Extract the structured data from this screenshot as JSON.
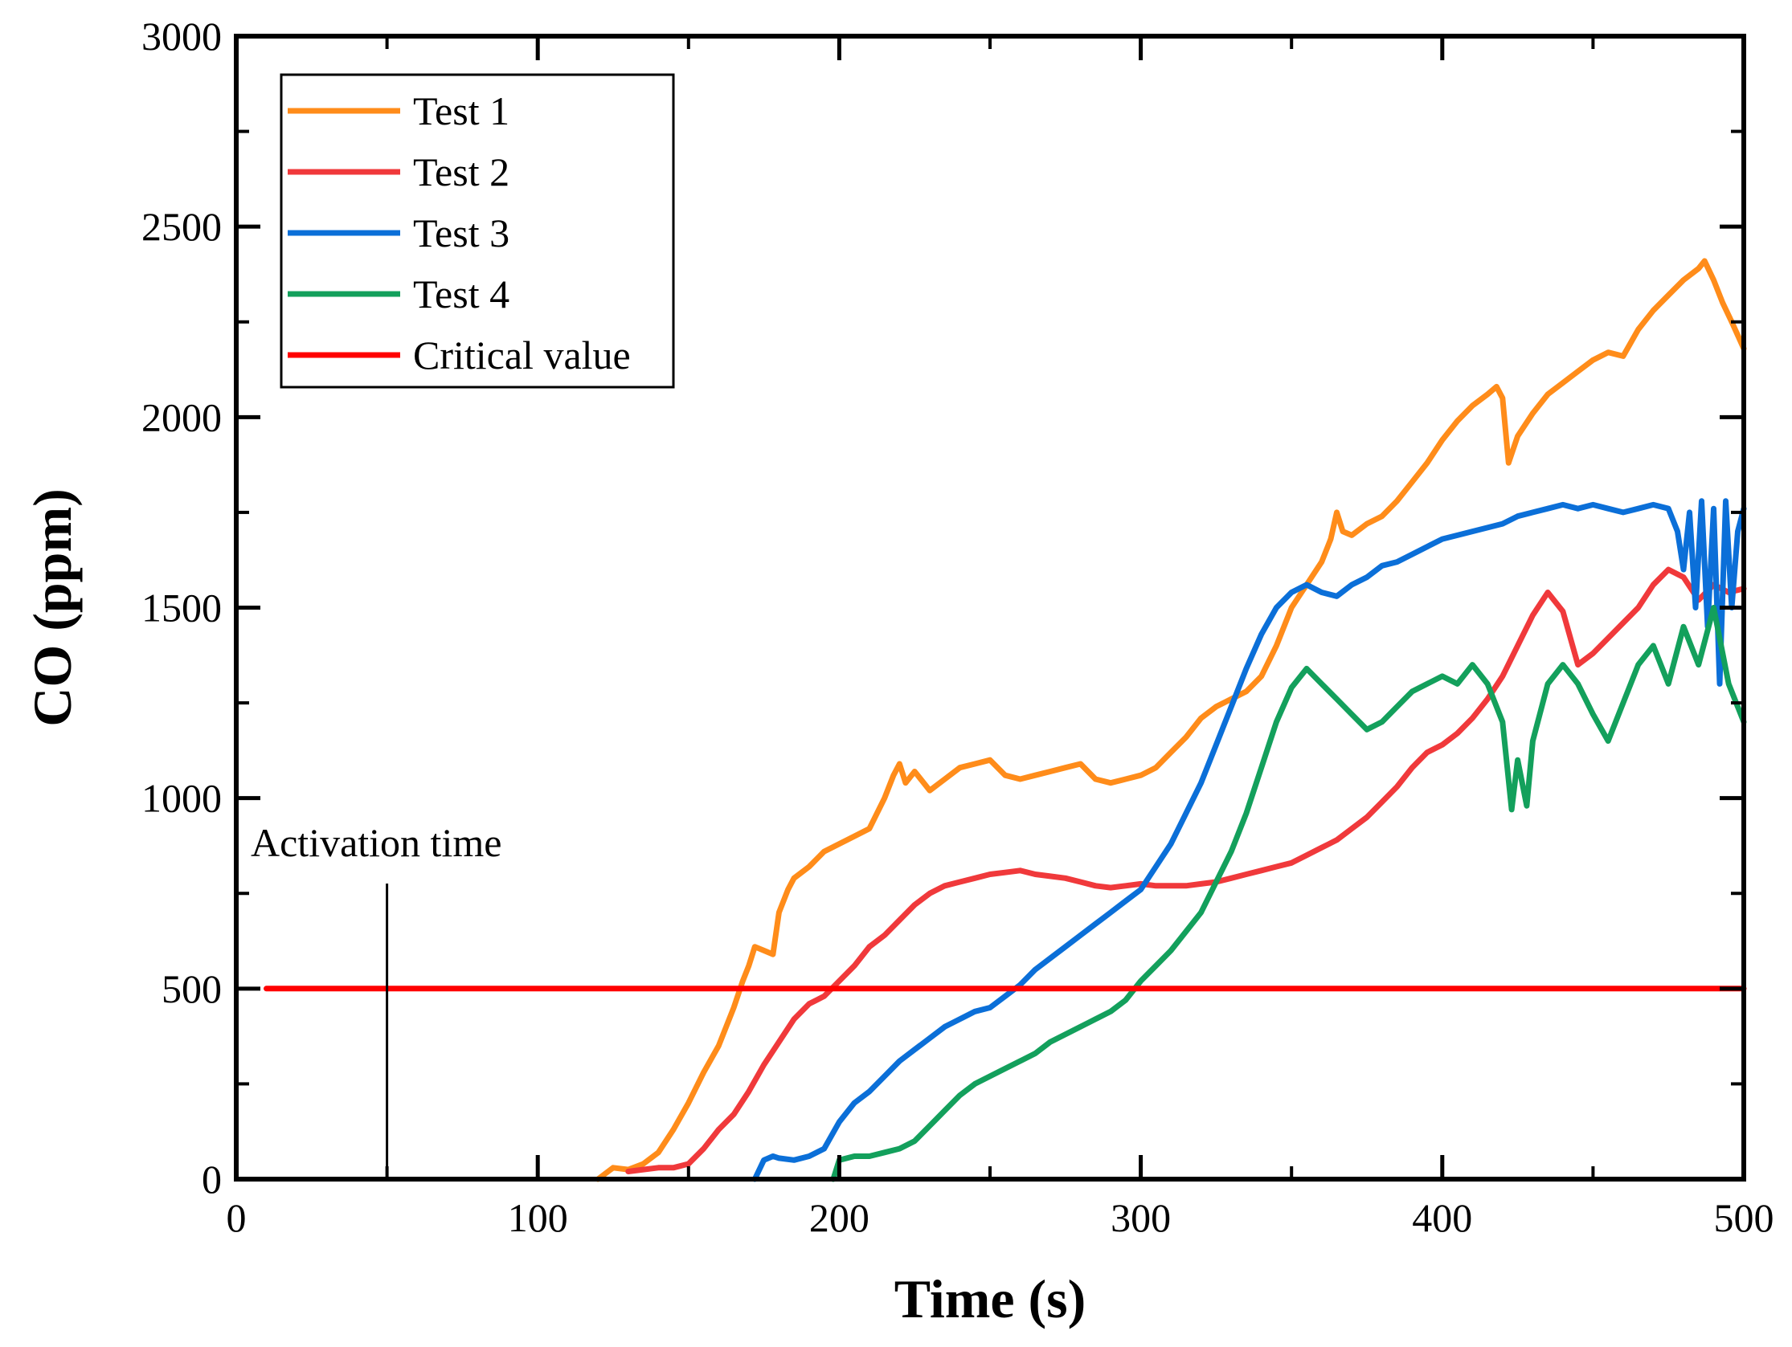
{
  "chart_data": {
    "type": "line",
    "title": "",
    "xlabel": "Time (s)",
    "ylabel": "CO (ppm)",
    "xlim": [
      0,
      500
    ],
    "ylim": [
      0,
      3000
    ],
    "xticks": [
      0,
      100,
      200,
      300,
      400,
      500
    ],
    "yticks": [
      0,
      500,
      1000,
      1500,
      2000,
      2500,
      3000
    ],
    "legend_position": "top-left",
    "grid": false,
    "annotation": {
      "text": "Activation time",
      "x": 50
    },
    "series": [
      {
        "name": "Test 1",
        "color": "#ff8c1a",
        "x": [
          120,
          125,
          130,
          135,
          140,
          145,
          150,
          155,
          160,
          165,
          168,
          170,
          172,
          175,
          178,
          180,
          183,
          185,
          190,
          195,
          200,
          205,
          210,
          215,
          218,
          220,
          222,
          225,
          230,
          235,
          240,
          245,
          250,
          255,
          260,
          265,
          270,
          275,
          280,
          285,
          290,
          295,
          300,
          305,
          310,
          315,
          320,
          325,
          330,
          335,
          340,
          345,
          350,
          355,
          360,
          363,
          365,
          367,
          370,
          375,
          380,
          385,
          390,
          395,
          400,
          405,
          410,
          415,
          418,
          420,
          422,
          425,
          430,
          435,
          440,
          445,
          450,
          455,
          460,
          465,
          470,
          475,
          480,
          485,
          487,
          490,
          493,
          496,
          500
        ],
        "y": [
          0,
          30,
          25,
          40,
          70,
          130,
          200,
          280,
          350,
          450,
          520,
          560,
          610,
          600,
          590,
          700,
          760,
          790,
          820,
          860,
          880,
          900,
          920,
          1000,
          1060,
          1090,
          1040,
          1070,
          1020,
          1050,
          1080,
          1090,
          1100,
          1060,
          1050,
          1060,
          1070,
          1080,
          1090,
          1050,
          1040,
          1050,
          1060,
          1080,
          1120,
          1160,
          1210,
          1240,
          1260,
          1280,
          1320,
          1400,
          1500,
          1560,
          1620,
          1680,
          1750,
          1700,
          1690,
          1720,
          1740,
          1780,
          1830,
          1880,
          1940,
          1990,
          2030,
          2060,
          2080,
          2050,
          1880,
          1950,
          2010,
          2060,
          2090,
          2120,
          2150,
          2170,
          2160,
          2230,
          2280,
          2320,
          2360,
          2390,
          2410,
          2360,
          2300,
          2250,
          2180
        ]
      },
      {
        "name": "Test 2",
        "color": "#f0393b",
        "x": [
          130,
          135,
          140,
          145,
          150,
          155,
          160,
          165,
          170,
          175,
          180,
          185,
          190,
          195,
          200,
          205,
          210,
          215,
          220,
          225,
          230,
          235,
          240,
          245,
          250,
          255,
          260,
          265,
          270,
          275,
          280,
          285,
          290,
          295,
          300,
          305,
          310,
          315,
          320,
          325,
          330,
          335,
          340,
          345,
          350,
          355,
          360,
          365,
          370,
          375,
          380,
          385,
          390,
          395,
          400,
          405,
          410,
          415,
          420,
          425,
          430,
          435,
          440,
          445,
          450,
          455,
          460,
          465,
          470,
          475,
          480,
          485,
          490,
          495,
          500
        ],
        "y": [
          20,
          25,
          30,
          30,
          40,
          80,
          130,
          170,
          230,
          300,
          360,
          420,
          460,
          480,
          520,
          560,
          610,
          640,
          680,
          720,
          750,
          770,
          780,
          790,
          800,
          805,
          810,
          800,
          795,
          790,
          780,
          770,
          765,
          770,
          775,
          770,
          770,
          770,
          775,
          780,
          790,
          800,
          810,
          820,
          830,
          850,
          870,
          890,
          920,
          950,
          990,
          1030,
          1080,
          1120,
          1140,
          1170,
          1210,
          1260,
          1320,
          1400,
          1480,
          1540,
          1490,
          1350,
          1380,
          1420,
          1460,
          1500,
          1560,
          1600,
          1580,
          1520,
          1560,
          1540,
          1550
        ]
      },
      {
        "name": "Test 3",
        "color": "#0b6fd8",
        "x": [
          172,
          175,
          178,
          180,
          185,
          190,
          195,
          200,
          205,
          210,
          215,
          220,
          225,
          230,
          235,
          240,
          245,
          250,
          255,
          260,
          265,
          270,
          275,
          280,
          285,
          290,
          295,
          300,
          305,
          310,
          315,
          320,
          325,
          330,
          335,
          340,
          345,
          350,
          355,
          360,
          365,
          370,
          375,
          380,
          385,
          390,
          395,
          400,
          405,
          410,
          415,
          420,
          425,
          430,
          435,
          440,
          445,
          450,
          455,
          460,
          465,
          470,
          475,
          478,
          480,
          482,
          484,
          486,
          488,
          490,
          492,
          494,
          496,
          498,
          500
        ],
        "y": [
          0,
          50,
          60,
          55,
          50,
          60,
          80,
          150,
          200,
          230,
          270,
          310,
          340,
          370,
          400,
          420,
          440,
          450,
          480,
          510,
          550,
          580,
          610,
          640,
          670,
          700,
          730,
          760,
          820,
          880,
          960,
          1040,
          1140,
          1240,
          1340,
          1430,
          1500,
          1540,
          1560,
          1540,
          1530,
          1560,
          1580,
          1610,
          1620,
          1640,
          1660,
          1680,
          1690,
          1700,
          1710,
          1720,
          1740,
          1750,
          1760,
          1770,
          1760,
          1770,
          1760,
          1750,
          1760,
          1770,
          1760,
          1700,
          1600,
          1750,
          1500,
          1780,
          1450,
          1760,
          1300,
          1780,
          1500,
          1700,
          1760
        ]
      },
      {
        "name": "Test 4",
        "color": "#13a05c",
        "x": [
          198,
          200,
          205,
          210,
          215,
          220,
          225,
          230,
          235,
          240,
          245,
          250,
          255,
          260,
          265,
          270,
          275,
          280,
          285,
          290,
          295,
          300,
          305,
          310,
          315,
          320,
          325,
          330,
          335,
          340,
          345,
          350,
          355,
          360,
          365,
          370,
          375,
          380,
          385,
          390,
          395,
          400,
          405,
          410,
          415,
          420,
          423,
          425,
          428,
          430,
          435,
          440,
          445,
          450,
          455,
          460,
          465,
          470,
          475,
          480,
          485,
          490,
          495,
          500
        ],
        "y": [
          0,
          50,
          60,
          60,
          70,
          80,
          100,
          140,
          180,
          220,
          250,
          270,
          290,
          310,
          330,
          360,
          380,
          400,
          420,
          440,
          470,
          520,
          560,
          600,
          650,
          700,
          780,
          860,
          960,
          1080,
          1200,
          1290,
          1340,
          1300,
          1260,
          1220,
          1180,
          1200,
          1240,
          1280,
          1300,
          1320,
          1300,
          1350,
          1300,
          1200,
          970,
          1100,
          980,
          1150,
          1300,
          1350,
          1300,
          1220,
          1150,
          1250,
          1350,
          1400,
          1300,
          1450,
          1350,
          1500,
          1300,
          1200
        ]
      },
      {
        "name": "Critical value",
        "color": "#ff0000",
        "x": [
          10,
          500
        ],
        "y": [
          500,
          500
        ]
      }
    ]
  }
}
